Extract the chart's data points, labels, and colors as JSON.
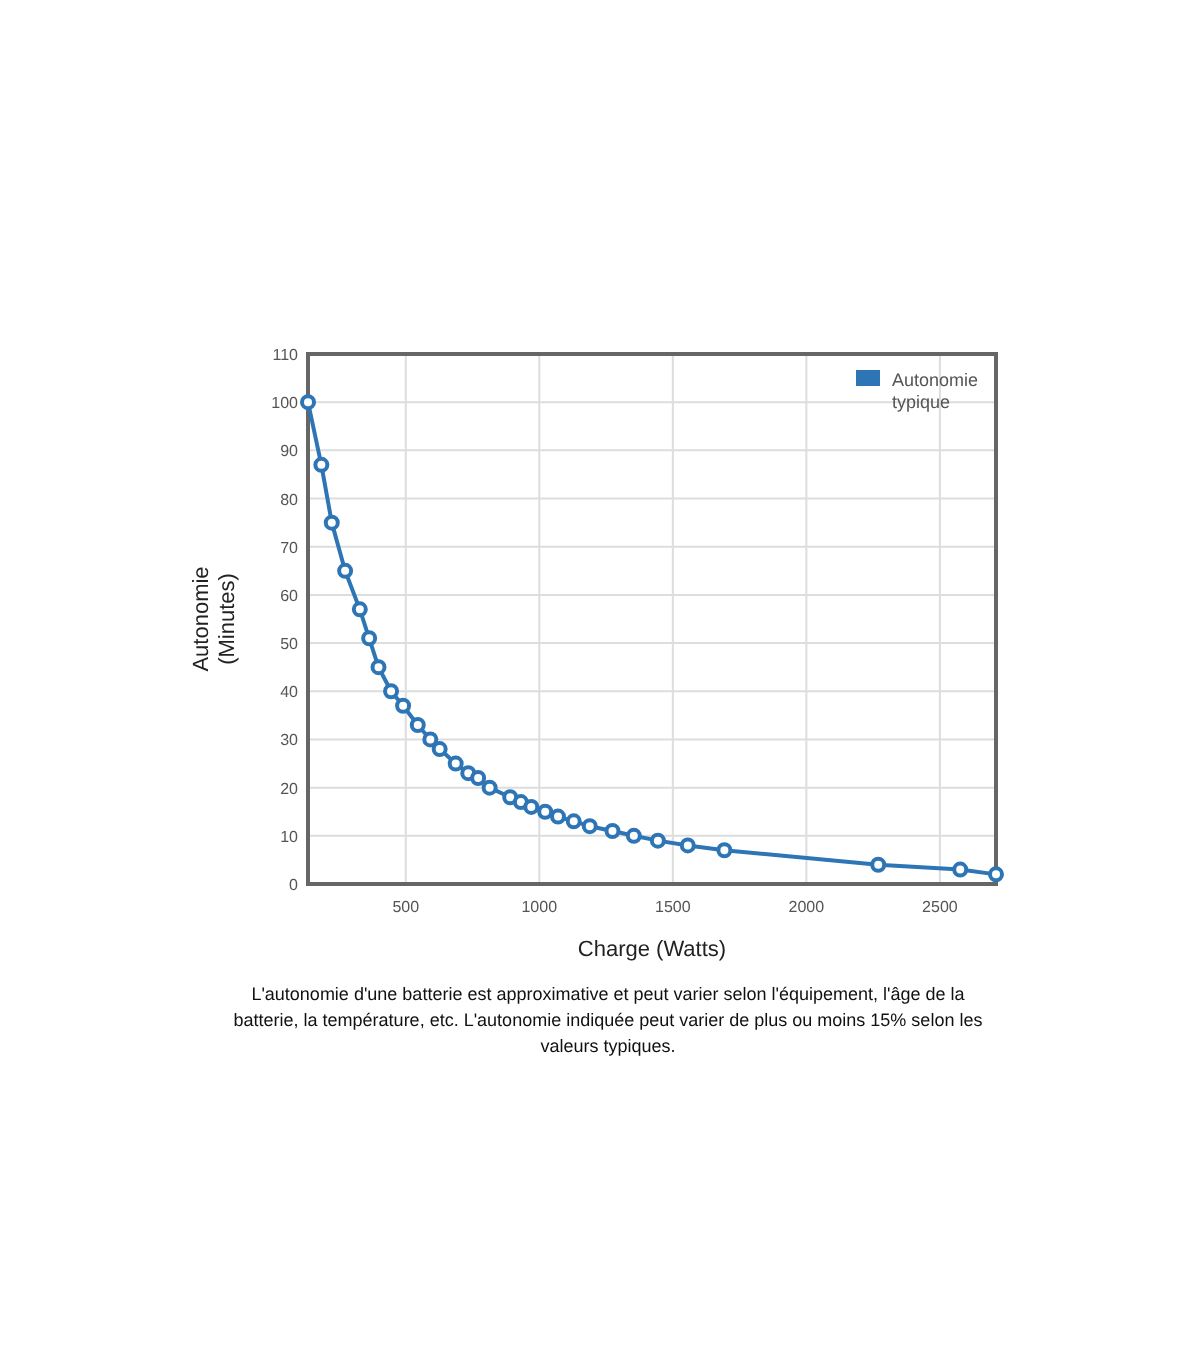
{
  "chart_data": {
    "type": "line",
    "xlabel": "Charge (Watts)",
    "ylabel": "Autonomie\n(Minutes)",
    "x": [
      134,
      184,
      223,
      273,
      328,
      363,
      398,
      445,
      490,
      545,
      592,
      627,
      687,
      734,
      771,
      814,
      891,
      931,
      970,
      1022,
      1070,
      1129,
      1189,
      1274,
      1354,
      1444,
      1556,
      1693,
      2269,
      2576,
      2710
    ],
    "series": [
      {
        "name": "Autonomie\ntypique",
        "color": "#2e75b6",
        "values": [
          100,
          87,
          75,
          65,
          57,
          51,
          45,
          40,
          37,
          33,
          30,
          28,
          25,
          23,
          22,
          20,
          18,
          17,
          16,
          15,
          14,
          13,
          12,
          11,
          10,
          9,
          8,
          7,
          4,
          3,
          2
        ]
      }
    ],
    "xlim": [
      134,
      2710
    ],
    "xticks": [
      500,
      1000,
      1500,
      2000,
      2500
    ],
    "ylim": [
      0,
      110
    ],
    "yticks": [
      0,
      10,
      20,
      30,
      40,
      50,
      60,
      70,
      80,
      90,
      100,
      110
    ],
    "grid": true,
    "legend": "top right",
    "marker": "circle",
    "line_style": "solid",
    "annotations": [
      "L'autonomie d'une batterie est approximative et peut varier selon l'équipement, l'âge de la batterie, la température, etc. L'autonomie indiquée peut varier de plus ou moins 15% selon les valeurs typiques."
    ]
  }
}
